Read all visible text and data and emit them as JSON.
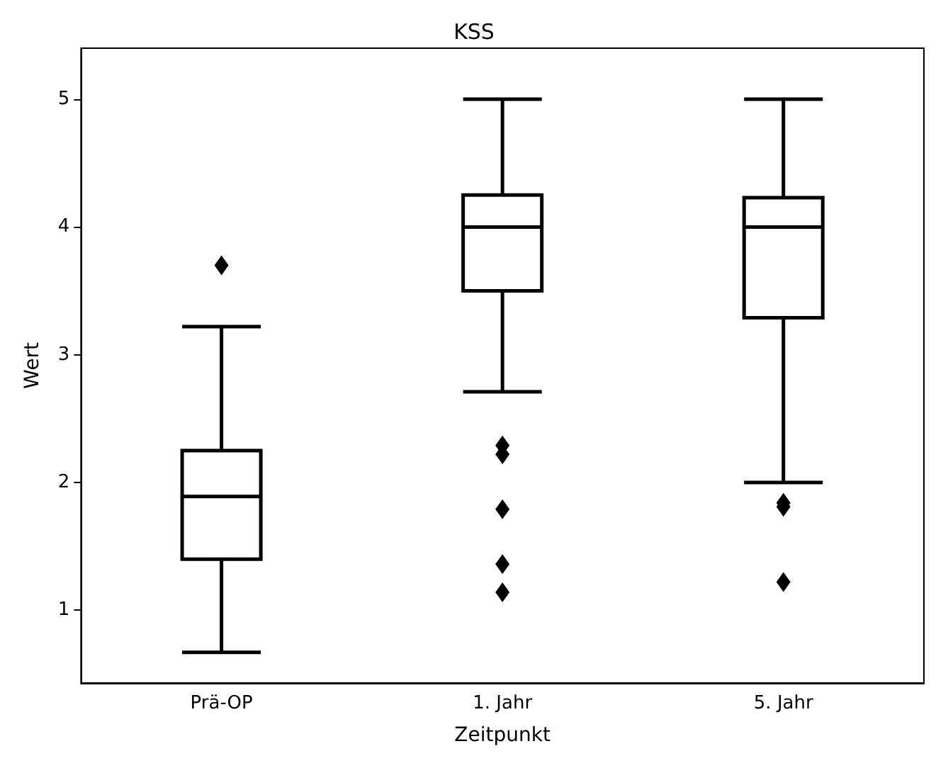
{
  "chart_data": {
    "type": "box",
    "title": "KSS",
    "xlabel": "Zeitpunkt",
    "ylabel": "Wert",
    "categories": [
      "Prä-OP",
      "1. Jahr",
      "5. Jahr"
    ],
    "boxes": [
      {
        "low": 0.67,
        "q1": 1.4,
        "median": 1.89,
        "q3": 2.25,
        "high": 3.22,
        "outliers": [
          3.7
        ]
      },
      {
        "low": 2.71,
        "q1": 3.5,
        "median": 4,
        "q3": 4.25,
        "high": 5,
        "outliers": [
          2.29,
          2.22,
          1.79,
          1.36,
          1.14
        ]
      },
      {
        "low": 2,
        "q1": 3.29,
        "median": 4,
        "q3": 4.23,
        "high": 5,
        "outliers": [
          1.84,
          1.81,
          1.22
        ]
      }
    ],
    "color": "#000000",
    "ylim": [
      0.43,
      5.4
    ],
    "yticks": [
      1,
      2,
      3,
      4,
      5
    ],
    "grid": false,
    "marker": "diamond"
  }
}
